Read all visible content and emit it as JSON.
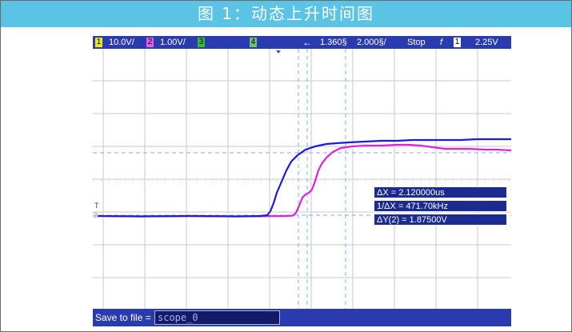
{
  "title": "图 1：动态上升时间图",
  "status": {
    "ch1_num": "1",
    "ch1_scale": "10.0V/",
    "ch2_num": "2",
    "ch2_scale": "1.00V/",
    "ch3_num": "3",
    "ch4_num": "4",
    "delay": "1.360§",
    "timebase": "2.000§/",
    "run_state": "Stop",
    "trigger_edge": "f",
    "trigger_ch": "1",
    "trigger_level": "2.25V"
  },
  "measurements": {
    "dx": "ΔX = 2.120000us",
    "inv_dx": "1/ΔX = 471.70kHz",
    "dy": "ΔY(2) = 1.87500V"
  },
  "markers": {
    "trigger_marker": "T",
    "ch2_marker": "2"
  },
  "save": {
    "label": "Save to file =",
    "filename": "scope_0"
  },
  "colors": {
    "title_bg": "#5bc3e3",
    "status_bg": "#2a3bb0",
    "ch1": "#e8e81a",
    "ch2": "#e060e0",
    "ch3": "#30c030",
    "ch4": "#70c070",
    "trace_blue": "#1a1ae0",
    "trace_magenta": "#e020e0",
    "cursor": "#7fb0e0"
  }
}
